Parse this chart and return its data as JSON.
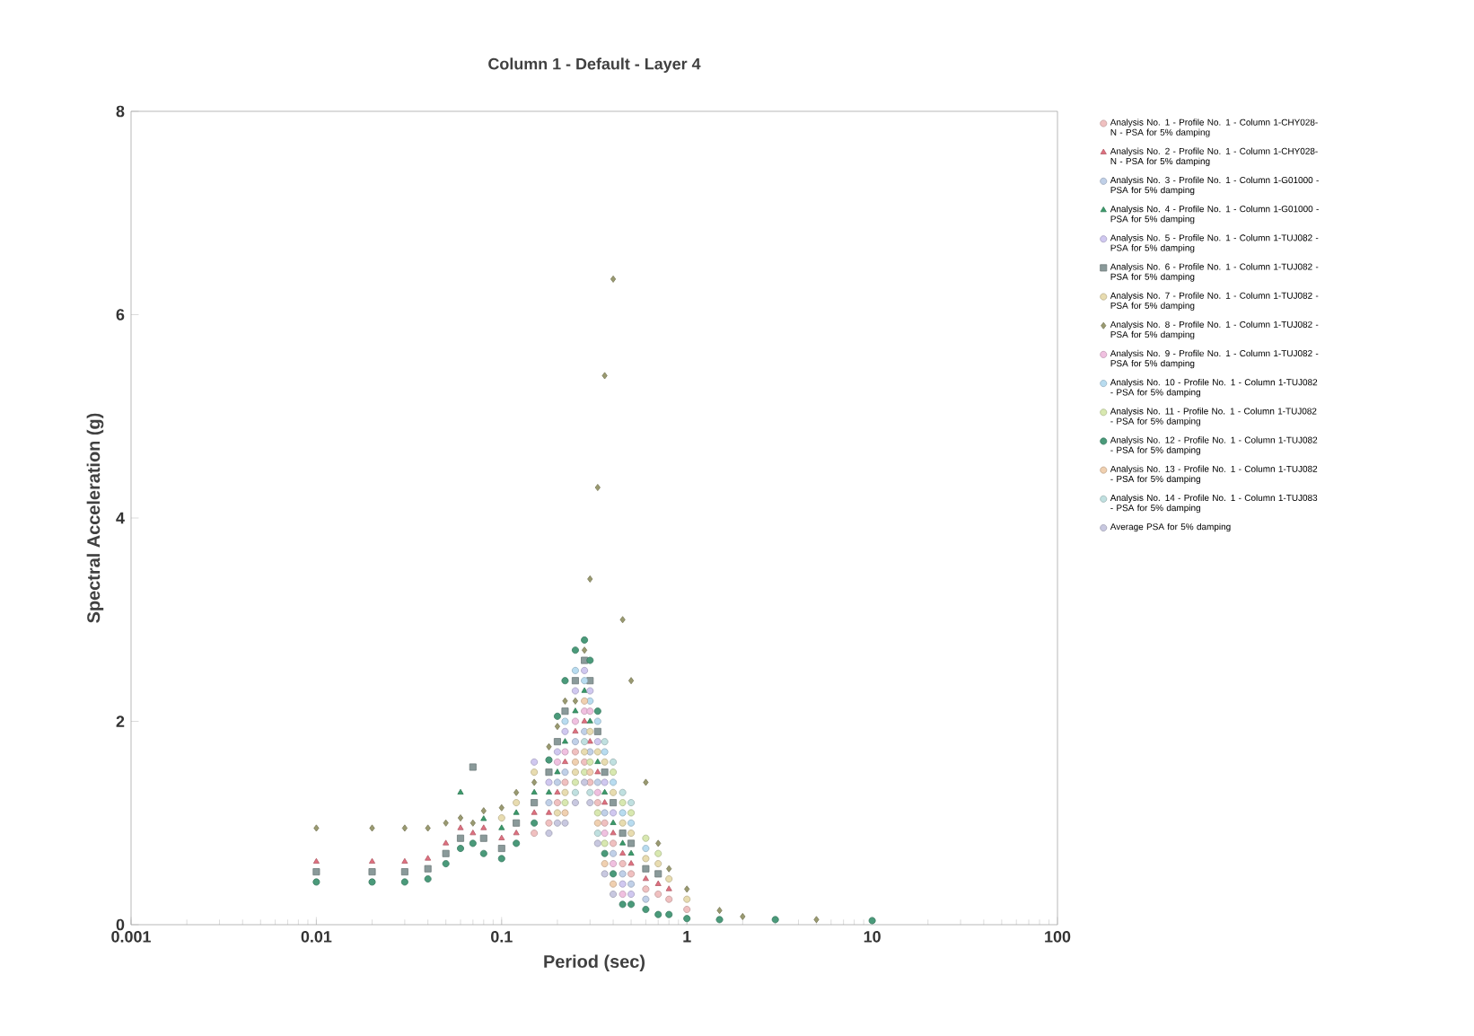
{
  "chart_data": {
    "type": "scatter",
    "title": "Column 1 - Default - Layer 4",
    "xlabel": "Period (sec)",
    "ylabel": "Spectral Acceleration (g)",
    "log": "x",
    "legend": "right",
    "xlim": [
      0.001,
      100
    ],
    "xticks": [
      0.001,
      0.01,
      0.1,
      1,
      10,
      100
    ],
    "ylim": [
      0,
      8
    ],
    "yticks": [
      0,
      2,
      4,
      6,
      8
    ],
    "x": [
      0.01,
      0.02,
      0.03,
      0.04,
      0.05,
      0.06,
      0.07,
      0.08,
      0.1,
      0.12,
      0.15,
      0.18,
      0.2,
      0.22,
      0.25,
      0.28,
      0.3,
      0.33,
      0.36,
      0.4,
      0.45,
      0.5,
      0.6,
      0.7,
      0.8,
      1,
      1.5,
      2,
      3,
      5,
      10
    ],
    "series": [
      {
        "name": "Analysis No. 1 - Profile No. 1 - Column 1-CHY028-N - PSA for 5% damping",
        "color": "#f0c0c0",
        "marker": "circle",
        "values": [
          null,
          null,
          null,
          null,
          null,
          null,
          null,
          null,
          null,
          null,
          0.9,
          1.0,
          1.2,
          1.4,
          1.7,
          1.6,
          1.4,
          1.2,
          1.0,
          0.8,
          0.6,
          0.5,
          0.35,
          0.3,
          0.25,
          0.15,
          null,
          null,
          null,
          null,
          null
        ]
      },
      {
        "name": "Analysis No. 2 - Profile No. 1 - Column 1-CHY028-N - PSA for 5% damping",
        "color": "#e07080",
        "marker": "triangle",
        "values": [
          0.62,
          0.62,
          0.62,
          0.65,
          0.8,
          0.95,
          0.9,
          0.95,
          0.85,
          0.9,
          1.1,
          1.1,
          1.3,
          1.6,
          1.9,
          2.0,
          1.8,
          1.5,
          1.2,
          0.9,
          0.7,
          0.6,
          0.45,
          0.4,
          0.35,
          null,
          null,
          null,
          null,
          null,
          null
        ]
      },
      {
        "name": "Analysis No. 3 - Profile No. 1 - Column 1-G01000 - PSA for 5% damping",
        "color": "#c0d0e8",
        "marker": "circle",
        "values": [
          null,
          null,
          null,
          null,
          null,
          null,
          null,
          null,
          null,
          null,
          null,
          1.2,
          1.4,
          1.5,
          1.8,
          1.9,
          1.7,
          1.4,
          1.1,
          0.7,
          0.5,
          0.4,
          0.25,
          null,
          null,
          null,
          null,
          null,
          null,
          null,
          null
        ]
      },
      {
        "name": "Analysis No. 4 - Profile No. 1 - Column 1-G01000 - PSA for 5% damping",
        "color": "#3a9a6a",
        "marker": "triangle",
        "values": [
          null,
          null,
          null,
          null,
          null,
          1.3,
          null,
          1.04,
          0.95,
          1.1,
          1.3,
          1.3,
          1.5,
          1.8,
          2.1,
          2.3,
          2.0,
          1.6,
          1.3,
          1.0,
          0.8,
          0.7,
          null,
          null,
          null,
          null,
          null,
          null,
          null,
          null,
          null
        ]
      },
      {
        "name": "Analysis No. 5 - Profile No. 1 - Column 1-TUJ082 - PSA for 5% damping",
        "color": "#d0c8f0",
        "marker": "circle",
        "values": [
          null,
          null,
          null,
          null,
          null,
          null,
          null,
          null,
          null,
          null,
          1.6,
          1.4,
          1.7,
          1.9,
          2.3,
          2.5,
          2.3,
          1.8,
          1.4,
          1.1,
          0.4,
          0.3,
          null,
          null,
          null,
          null,
          null,
          null,
          null,
          null,
          null
        ]
      },
      {
        "name": "Analysis No. 6 - Profile No. 1 - Column 1-TUJ082 - PSA for 5% damping",
        "color": "#8a9a9a",
        "marker": "square",
        "values": [
          0.52,
          0.52,
          0.52,
          0.55,
          0.7,
          0.85,
          1.55,
          0.85,
          0.75,
          1.0,
          1.2,
          1.5,
          1.8,
          2.1,
          2.4,
          2.6,
          2.4,
          1.9,
          1.5,
          1.2,
          0.9,
          0.8,
          0.55,
          0.5,
          null,
          null,
          null,
          null,
          null,
          null,
          null
        ]
      },
      {
        "name": "Analysis No. 7 - Profile No. 1 - Column 1-TUJ082 - PSA for 5% damping",
        "color": "#e8dcb0",
        "marker": "circle",
        "values": [
          null,
          null,
          null,
          null,
          null,
          null,
          null,
          null,
          1.05,
          1.2,
          1.5,
          null,
          1.1,
          1.3,
          1.5,
          1.7,
          1.9,
          1.7,
          1.6,
          1.3,
          1.0,
          0.9,
          0.65,
          0.6,
          0.45,
          0.25,
          null,
          null,
          null,
          null,
          null
        ]
      },
      {
        "name": "Analysis No. 8 - Profile No. 1 - Column 1-TUJ082 - PSA for 5% damping",
        "color": "#9a9a70",
        "marker": "diamond",
        "values": [
          0.95,
          0.95,
          0.95,
          0.95,
          1.0,
          1.05,
          1.0,
          1.12,
          1.15,
          1.3,
          1.4,
          1.75,
          1.95,
          2.2,
          2.2,
          2.7,
          3.4,
          4.3,
          5.4,
          6.35,
          3.0,
          2.4,
          1.4,
          0.8,
          0.55,
          0.35,
          0.14,
          0.08,
          null,
          0.05,
          null
        ]
      },
      {
        "name": "Analysis No. 9 - Profile No. 1 - Column 1-TUJ082 - PSA for 5% damping",
        "color": "#f0c0e0",
        "marker": "circle",
        "values": [
          null,
          null,
          null,
          null,
          null,
          null,
          null,
          null,
          null,
          null,
          null,
          null,
          1.6,
          1.7,
          2.0,
          2.1,
          2.1,
          1.3,
          0.9,
          0.6,
          0.3,
          null,
          null,
          null,
          null,
          null,
          null,
          null,
          null,
          null,
          null
        ]
      },
      {
        "name": "Analysis No. 10 - Profile No. 1 - Column 1-TUJ082 - PSA for 5% damping",
        "color": "#b8dcf0",
        "marker": "circle",
        "values": [
          null,
          null,
          null,
          null,
          null,
          null,
          null,
          null,
          null,
          null,
          null,
          null,
          null,
          2.0,
          2.5,
          2.4,
          2.2,
          2.0,
          1.7,
          1.4,
          1.1,
          1.0,
          0.75,
          null,
          null,
          null,
          null,
          null,
          null,
          null,
          null
        ]
      },
      {
        "name": "Analysis No. 11 - Profile No. 1 - Column 1-TUJ082 - PSA for 5% damping",
        "color": "#d8e8b0",
        "marker": "circle",
        "values": [
          null,
          null,
          null,
          null,
          null,
          null,
          null,
          null,
          null,
          null,
          null,
          null,
          null,
          1.2,
          1.4,
          1.5,
          1.6,
          1.1,
          0.8,
          1.5,
          1.2,
          1.1,
          0.85,
          0.7,
          null,
          null,
          null,
          null,
          null,
          null,
          null
        ]
      },
      {
        "name": "Analysis No. 12 - Profile No. 1 - Column 1-TUJ082 - PSA for 5% damping",
        "color": "#4a9a7a",
        "marker": "circle",
        "values": [
          0.42,
          0.42,
          0.42,
          0.45,
          0.6,
          0.75,
          0.8,
          0.7,
          0.65,
          0.8,
          1.0,
          1.62,
          2.05,
          2.4,
          2.7,
          2.8,
          2.6,
          2.1,
          0.7,
          0.5,
          0.2,
          0.2,
          0.15,
          0.1,
          0.1,
          0.06,
          0.05,
          null,
          0.05,
          null,
          0.04
        ]
      },
      {
        "name": "Analysis No. 13 - Profile No. 1 - Column 1-TUJ082 - PSA for 5% damping",
        "color": "#f0d0b0",
        "marker": "circle",
        "values": [
          null,
          null,
          null,
          null,
          null,
          null,
          null,
          null,
          null,
          null,
          null,
          null,
          null,
          1.1,
          1.6,
          2.2,
          1.5,
          1.0,
          0.6,
          0.4,
          null,
          null,
          null,
          null,
          null,
          null,
          null,
          null,
          null,
          null,
          null
        ]
      },
      {
        "name": "Analysis No. 14 - Profile No. 1 - Column 1-TUJ083 - PSA for 5% damping",
        "color": "#c0e0e0",
        "marker": "circle",
        "values": [
          null,
          null,
          null,
          null,
          null,
          null,
          null,
          null,
          null,
          null,
          null,
          null,
          null,
          null,
          1.3,
          1.8,
          1.3,
          0.9,
          1.8,
          1.6,
          1.3,
          1.2,
          null,
          null,
          null,
          null,
          null,
          null,
          null,
          null,
          null
        ]
      },
      {
        "name": "Average PSA for 5% damping",
        "color": "#c8c8e0",
        "marker": "circle",
        "values": [
          null,
          null,
          null,
          null,
          null,
          null,
          null,
          null,
          null,
          null,
          null,
          0.9,
          1.0,
          1.0,
          1.2,
          1.4,
          1.2,
          0.8,
          0.5,
          0.3,
          null,
          null,
          null,
          null,
          null,
          null,
          null,
          null,
          null,
          null,
          null
        ]
      }
    ]
  }
}
